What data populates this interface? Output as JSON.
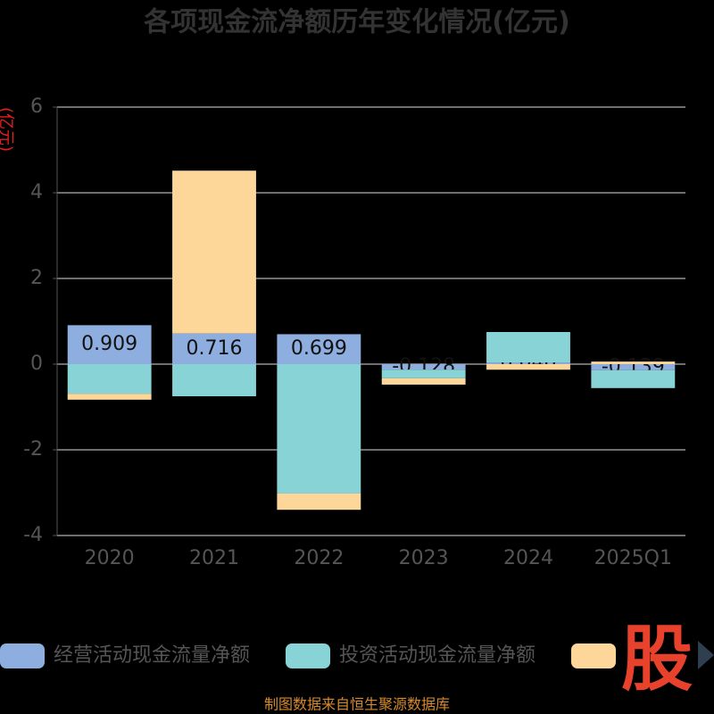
{
  "chart_data": {
    "type": "bar",
    "stacked": true,
    "title": "各项现金流净额历年变化情况(亿元)",
    "y_label": "(亿元)",
    "categories": [
      "2020",
      "2021",
      "2022",
      "2023",
      "2024",
      "2025Q1"
    ],
    "series": [
      {
        "name": "经营活动现金流量净额",
        "color": "#8eaee0",
        "values": [
          0.909,
          0.716,
          0.699,
          -0.128,
          0.04,
          -0.139
        ],
        "value_labels": [
          "0.909",
          "0.716",
          "0.699",
          "-0.128",
          "0.040",
          "-0.139"
        ]
      },
      {
        "name": "投资活动现金流量净额",
        "color": "#87d3d6",
        "values": [
          -0.69,
          -0.75,
          -3.02,
          -0.2,
          0.71,
          -0.42
        ]
      },
      {
        "color": "#fdd69a",
        "values": [
          -0.14,
          3.8,
          -0.38,
          -0.15,
          -0.13,
          0.06
        ]
      }
    ],
    "ylim": [
      -4,
      6
    ],
    "yticks": [
      -4,
      -2,
      0,
      2,
      4,
      6
    ],
    "grid": true,
    "source": "制图数据来自恒生聚源数据库",
    "logo": "股"
  }
}
